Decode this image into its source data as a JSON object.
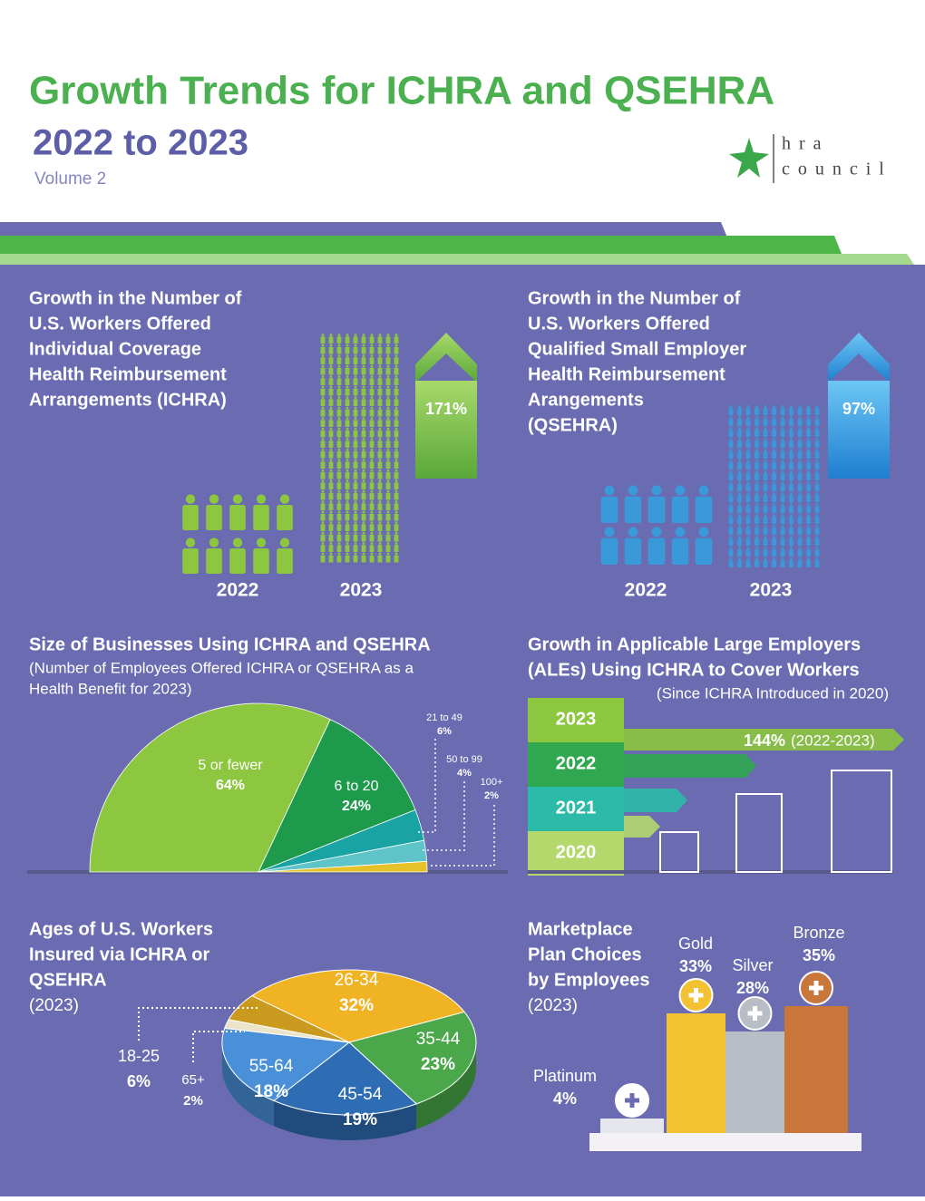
{
  "header": {
    "title": "Growth Trends for ICHRA and QSEHRA",
    "subtitle": "2022 to 2023",
    "volume": "Volume 2",
    "logo": [
      "hra",
      "council"
    ]
  },
  "chart_data": [
    {
      "type": "pictograph",
      "title": [
        "Growth in the Number of",
        "U.S. Workers Offered",
        "Individual Coverage",
        "Health Reimbursement",
        "Arrangements (ICHRA)"
      ],
      "categories": [
        "2022",
        "2023"
      ],
      "growth": 171,
      "growth_label": "171%",
      "color": "#8dc63f"
    },
    {
      "type": "pictograph",
      "title": [
        "Growth in the Number of",
        "U.S. Workers Offered",
        "Qualified Small Employer",
        "Health Reimbursement",
        "Arangements",
        "(QSEHRA)"
      ],
      "categories": [
        "2022",
        "2023"
      ],
      "growth": 97,
      "growth_label": "97%",
      "color": "#3a9ad9"
    },
    {
      "type": "half-pie",
      "title": "Size of Businesses Using ICHRA and QSEHRA",
      "subtitle": [
        "(Number of Employees Offered ICHRA or QSEHRA as a",
        "Health Benefit for 2023)"
      ],
      "categories": [
        "5 or fewer",
        "6 to 20",
        "21 to 49",
        "50 to 99",
        "100+"
      ],
      "values": [
        64,
        24,
        6,
        4,
        2
      ],
      "value_labels": [
        "64%",
        "24%",
        "6%",
        "4%",
        "2%"
      ],
      "colors": [
        "#8dc63f",
        "#1e9a4c",
        "#1aa3a3",
        "#5fc4c8",
        "#e6c229"
      ]
    },
    {
      "type": "step-arrow",
      "title": [
        "Growth in Applicable Large Employers",
        "(ALEs) Using ICHRA to Cover Workers"
      ],
      "subtitle": "(Since ICHRA Introduced in 2020)",
      "categories": [
        "2023",
        "2022",
        "2021",
        "2020"
      ],
      "growth": 144,
      "growth_label": "144%",
      "growth_note": "(2022-2023)",
      "colors": [
        "#8dc63f",
        "#2fa84f",
        "#2bbba8",
        "#b5d86c"
      ]
    },
    {
      "type": "pie",
      "title": [
        "Ages of U.S. Workers",
        "Insured via ICHRA or",
        "QSEHRA"
      ],
      "subtitle": "(2023)",
      "categories": [
        "26-34",
        "35-44",
        "45-54",
        "55-64",
        "65+",
        "18-25"
      ],
      "values": [
        32,
        23,
        19,
        18,
        2,
        6
      ],
      "value_labels": [
        "32%",
        "23%",
        "19%",
        "18%",
        "2%",
        "6%"
      ],
      "colors": [
        "#f0b323",
        "#4aa84a",
        "#2e6db4",
        "#4a90d9",
        "#ece4c8",
        "#c99a1e"
      ]
    },
    {
      "type": "bar",
      "title": [
        "Marketplace",
        "Plan Choices",
        "by Employees"
      ],
      "subtitle": "(2023)",
      "categories": [
        "Platinum",
        "Gold",
        "Silver",
        "Bronze"
      ],
      "values": [
        4,
        33,
        28,
        35
      ],
      "value_labels": [
        "4%",
        "33%",
        "28%",
        "35%"
      ],
      "colors": [
        "#e6e7ee",
        "#f2c233",
        "#b9bdc6",
        "#c8763a"
      ]
    }
  ]
}
